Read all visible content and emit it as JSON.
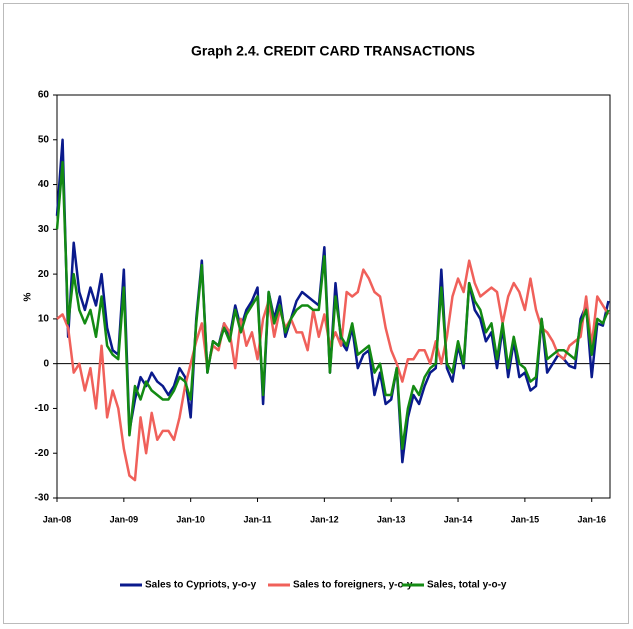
{
  "chart_data": {
    "type": "line",
    "title": "Graph 2.4. CREDIT CARD TRANSACTIONS",
    "y_label": "%",
    "categories": [
      "Jan-08",
      null,
      null,
      null,
      null,
      null,
      null,
      null,
      null,
      null,
      null,
      null,
      "Jan-09",
      null,
      null,
      null,
      null,
      null,
      null,
      null,
      null,
      null,
      null,
      null,
      "Jan-10",
      null,
      null,
      null,
      null,
      null,
      null,
      null,
      null,
      null,
      null,
      null,
      "Jan-11",
      null,
      null,
      null,
      null,
      null,
      null,
      null,
      null,
      null,
      null,
      null,
      "Jan-12",
      null,
      null,
      null,
      null,
      null,
      null,
      null,
      null,
      null,
      null,
      null,
      "Jan-13",
      null,
      null,
      null,
      null,
      null,
      null,
      null,
      null,
      null,
      null,
      null,
      "Jan-14",
      null,
      null,
      null,
      null,
      null,
      null,
      null,
      null,
      null,
      null,
      null,
      "Jan-15",
      null,
      null,
      null,
      null,
      null,
      null,
      null,
      null,
      null,
      null,
      null,
      "Jan-16",
      null,
      null,
      null
    ],
    "series": [
      {
        "name": "Sales to Cypriots, y-o-y",
        "color": "#0a1a8c",
        "values": [
          33,
          50,
          6,
          27,
          16,
          12,
          17,
          13,
          20,
          8,
          3,
          2,
          21,
          -15,
          -8,
          -3,
          -5,
          -2,
          -4,
          -5,
          -7,
          -5,
          -1,
          -3,
          -12,
          10,
          23,
          -2,
          5,
          4,
          9,
          6,
          13,
          8,
          12,
          14,
          17,
          -9,
          16,
          10,
          15,
          6,
          10,
          14,
          16,
          15,
          14,
          13,
          26,
          -2,
          18,
          5,
          3,
          8,
          -1,
          2,
          3,
          -7,
          -2,
          -9,
          -8,
          -1,
          -22,
          -12,
          -7,
          -9,
          -5,
          -2,
          -1,
          21,
          -1,
          -4,
          4,
          -1,
          18,
          12,
          10,
          5,
          7,
          -1,
          8,
          -3,
          5,
          -3,
          -2,
          -6,
          -5,
          10,
          -2,
          0,
          2,
          1,
          -0.5,
          -1,
          10,
          13,
          -3,
          9,
          8.5,
          14
        ]
      },
      {
        "name": "Sales to foreigners, y-o-y",
        "color": "#f0605a",
        "values": [
          10,
          11,
          8,
          -2,
          0,
          -6,
          -1,
          -10,
          4,
          -12,
          -6,
          -10,
          -19,
          -25,
          -26,
          -12,
          -20,
          -11,
          -17,
          -15,
          -15,
          -17,
          -12,
          -5,
          0,
          5,
          9,
          -1,
          4,
          3,
          9,
          7,
          -1,
          10,
          4,
          7,
          1,
          10,
          14,
          6,
          12,
          8,
          10,
          7,
          7,
          3,
          12,
          6,
          11,
          4,
          7,
          4,
          16,
          15,
          16,
          21,
          19,
          16,
          15,
          8,
          3,
          0,
          -4,
          1,
          1,
          3,
          3,
          0,
          5,
          0,
          6,
          15,
          19,
          16,
          23,
          18,
          15,
          16,
          17,
          16,
          9,
          15,
          18,
          16,
          12,
          19,
          12,
          8,
          7,
          5,
          2,
          1,
          4,
          5,
          6,
          15,
          4,
          15,
          13,
          11
        ]
      },
      {
        "name": "Sales, total y-o-y",
        "color": "#138a13",
        "values": [
          30,
          45,
          9,
          20,
          12,
          9,
          12,
          6,
          15,
          4,
          2,
          1,
          17,
          -16,
          -5,
          -8,
          -4,
          -6,
          -7,
          -8,
          -8,
          -6,
          -3,
          -4,
          -8,
          9,
          22,
          -2,
          5,
          4,
          8,
          5,
          12,
          7,
          11,
          13,
          15,
          -7,
          16,
          9,
          13,
          7,
          10,
          12,
          13,
          13,
          12,
          12,
          24,
          -2,
          15,
          6,
          4,
          9,
          2,
          3,
          4,
          -2,
          0,
          -7,
          -7,
          -1,
          -19,
          -10,
          -5,
          -7,
          -3,
          -1,
          0,
          17,
          0,
          -2,
          5,
          0,
          18,
          14,
          12,
          7,
          9,
          1,
          9,
          -1,
          6,
          0,
          -1,
          -4,
          -3,
          10,
          1,
          2,
          3,
          3,
          2,
          1,
          9,
          12,
          2,
          10,
          9,
          12
        ]
      }
    ],
    "ylim": [
      -30,
      60
    ],
    "yticks": [
      -30,
      -20,
      -10,
      0,
      10,
      20,
      30,
      40,
      50,
      60
    ],
    "legend": "bottom"
  }
}
